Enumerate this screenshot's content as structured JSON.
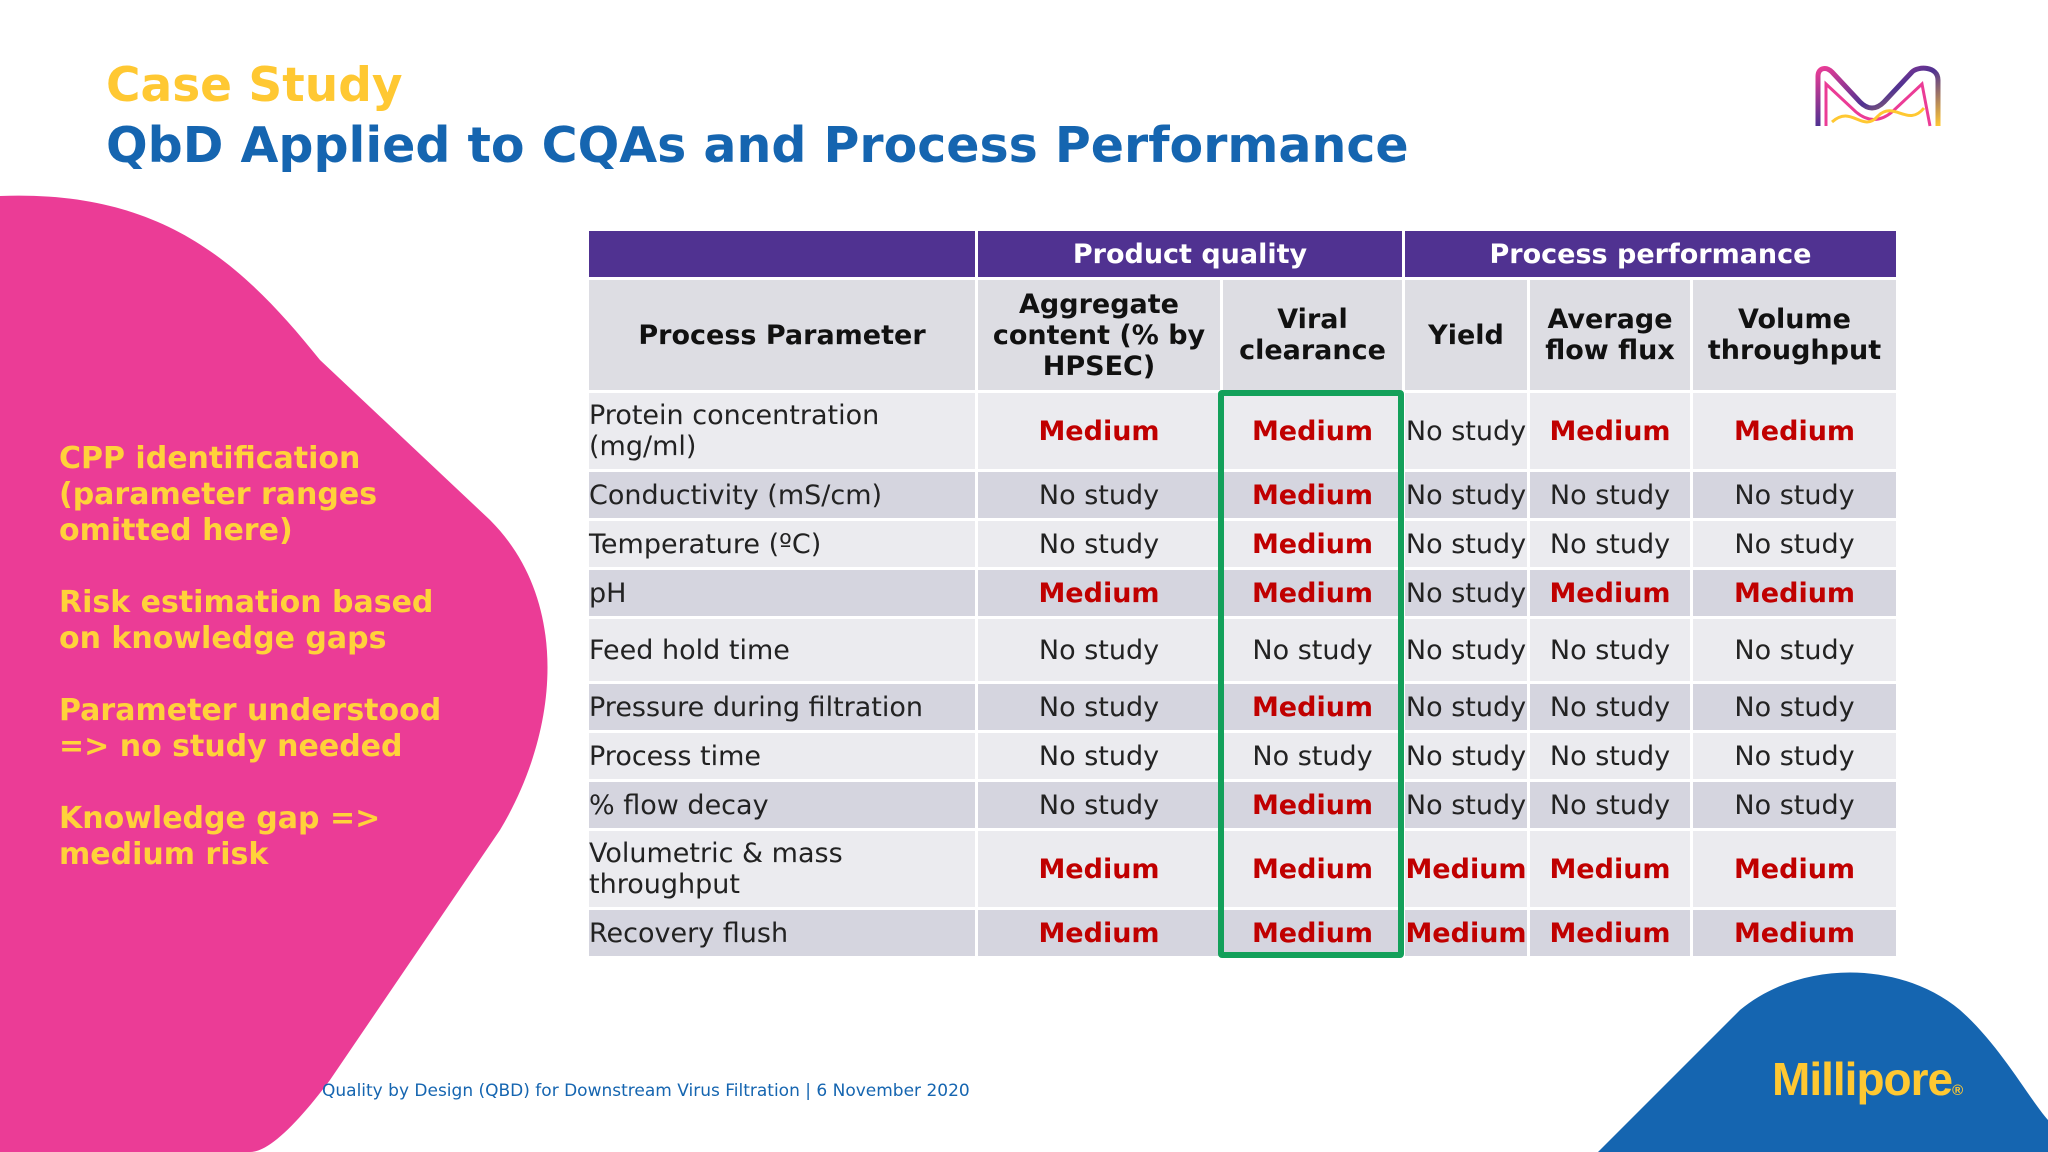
{
  "title": {
    "line1": "Case Study",
    "line2": "QbD Applied to CQAs and Process Performance"
  },
  "side_notes": [
    "CPP identification (parameter ranges omitted here)",
    "Risk estimation based on knowledge gaps",
    "Parameter understood => no study needed",
    "Knowledge gap => medium risk"
  ],
  "table": {
    "groups": {
      "product_quality": "Product quality",
      "process_performance": "Process performance"
    },
    "columns": {
      "param": "Process Parameter",
      "aggregate": "Aggregate content (% by HPSEC)",
      "viral": "Viral clearance",
      "yield": "Yield",
      "flux": "Average flow flux",
      "volume": "Volume throughput"
    },
    "rows": [
      {
        "param": "Protein concentration (mg/ml)",
        "values": [
          "Medium",
          "Medium",
          "No study",
          "Medium",
          "Medium"
        ]
      },
      {
        "param": "Conductivity (mS/cm)",
        "values": [
          "No study",
          "Medium",
          "No study",
          "No study",
          "No study"
        ]
      },
      {
        "param": "Temperature (ºC)",
        "values": [
          "No study",
          "Medium",
          "No study",
          "No study",
          "No study"
        ]
      },
      {
        "param": "pH",
        "values": [
          "Medium",
          "Medium",
          "No study",
          "Medium",
          "Medium"
        ]
      },
      {
        "param": "Feed hold time",
        "values": [
          "No study",
          "No study",
          "No study",
          "No study",
          "No study"
        ]
      },
      {
        "param": "Pressure during filtration",
        "values": [
          "No study",
          "Medium",
          "No study",
          "No study",
          "No study"
        ]
      },
      {
        "param": "Process time",
        "values": [
          "No study",
          "No study",
          "No study",
          "No study",
          "No study"
        ]
      },
      {
        "param": "% flow decay",
        "values": [
          "No study",
          "Medium",
          "No study",
          "No study",
          "No study"
        ]
      },
      {
        "param": "Volumetric & mass throughput",
        "values": [
          "Medium",
          "Medium",
          "Medium",
          "Medium",
          "Medium"
        ]
      },
      {
        "param": "Recovery flush",
        "values": [
          "Medium",
          "Medium",
          "Medium",
          "Medium",
          "Medium"
        ]
      }
    ]
  },
  "footer": "Quality by Design (QBD) for Downstream Virus Filtration | 6 November 2020",
  "brand": {
    "name": "Millipore",
    "mark": "®"
  },
  "colors": {
    "pink": "#eb3c96",
    "blue": "#1565b0",
    "yellow": "#ffc832",
    "purple": "#503291",
    "green_highlight": "#13a05a",
    "medium_red": "#c00000"
  }
}
